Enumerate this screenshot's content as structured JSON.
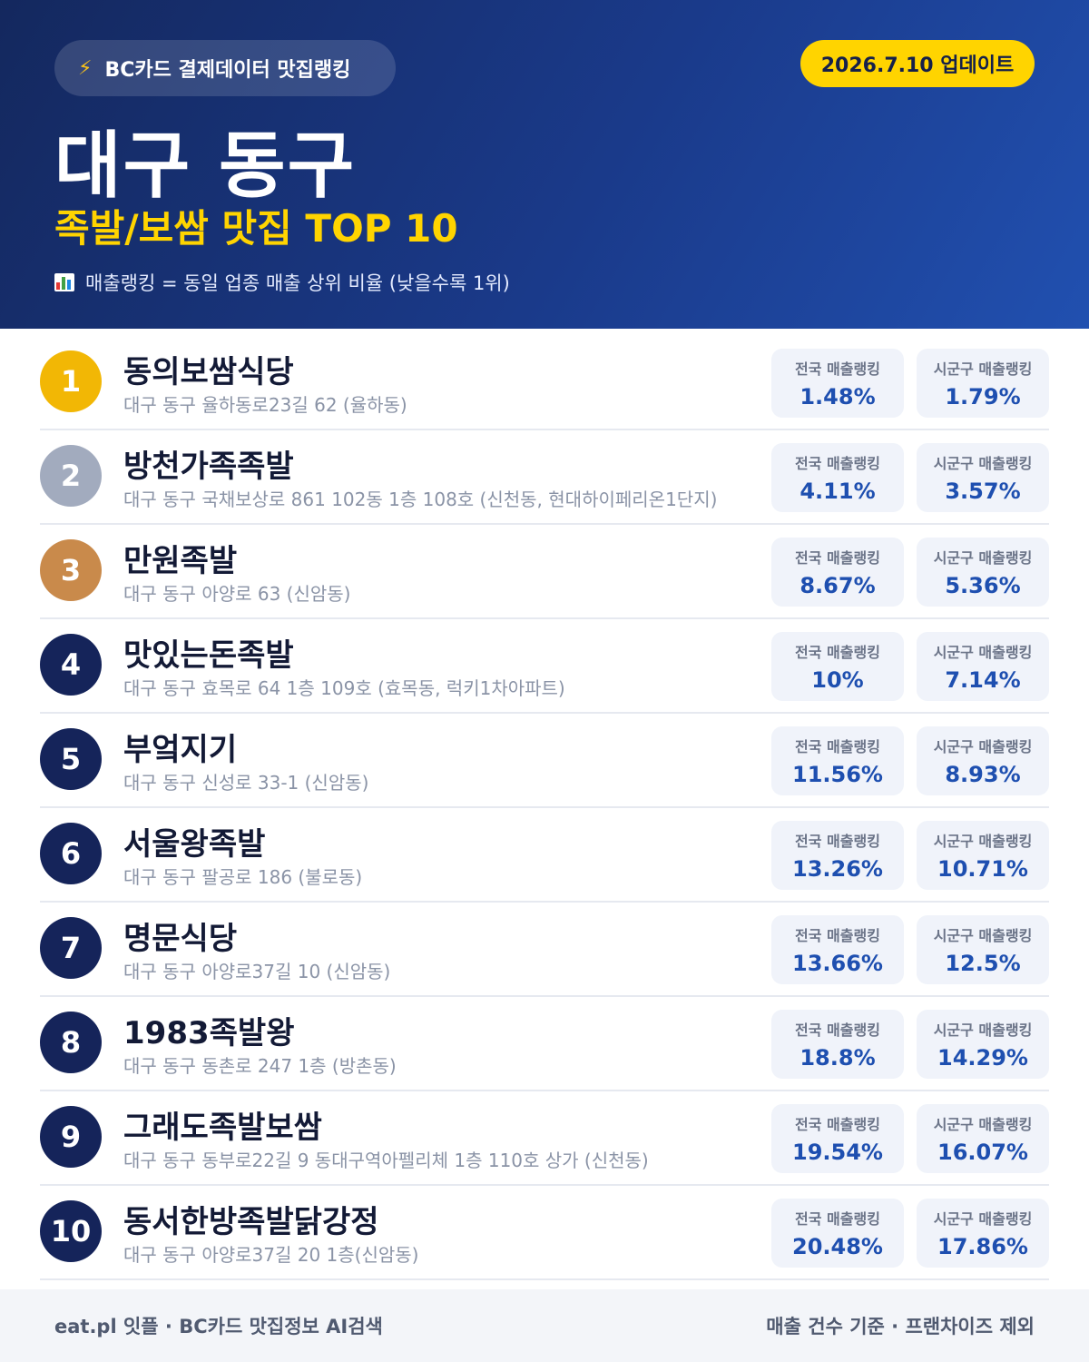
{
  "header": {
    "source": "BC카드 결제데이터 맛집랭킹",
    "update": "2026.7.10 업데이트",
    "region": "대구 동구",
    "subtitle": "족발/보쌈 맛집 TOP 10",
    "note": "매출랭킹 = 동일 업종 매출 상위 비율 (낮을수록 1위)",
    "accent": "#ffd400"
  },
  "labels": {
    "national": "전국 매출랭킹",
    "local": "시군구 매출랭킹"
  },
  "items": [
    {
      "rank": "1",
      "name": "동의보쌈식당",
      "address": "대구 동구 율하동로23길 62 (율하동)",
      "national": "1.48%",
      "local": "1.79%"
    },
    {
      "rank": "2",
      "name": "방천가족족발",
      "address": "대구 동구 국채보상로 861 102동 1층 108호 (신천동, 현대하이페리온1단지)",
      "national": "4.11%",
      "local": "3.57%"
    },
    {
      "rank": "3",
      "name": "만원족발",
      "address": "대구 동구 아양로 63 (신암동)",
      "national": "8.67%",
      "local": "5.36%"
    },
    {
      "rank": "4",
      "name": "맛있는돈족발",
      "address": "대구 동구 효목로 64 1층 109호 (효목동, 럭키1차아파트)",
      "national": "10%",
      "local": "7.14%"
    },
    {
      "rank": "5",
      "name": "부엌지기",
      "address": "대구 동구 신성로 33-1 (신암동)",
      "national": "11.56%",
      "local": "8.93%"
    },
    {
      "rank": "6",
      "name": "서울왕족발",
      "address": "대구 동구 팔공로 186 (불로동)",
      "national": "13.26%",
      "local": "10.71%"
    },
    {
      "rank": "7",
      "name": "명문식당",
      "address": "대구 동구 아양로37길 10 (신암동)",
      "national": "13.66%",
      "local": "12.5%"
    },
    {
      "rank": "8",
      "name": "1983족발왕",
      "address": "대구 동구 동촌로 247 1층 (방촌동)",
      "national": "18.8%",
      "local": "14.29%"
    },
    {
      "rank": "9",
      "name": "그래도족발보쌈",
      "address": "대구 동구 동부로22길 9 동대구역아펠리체 1층 110호 상가 (신천동)",
      "national": "19.54%",
      "local": "16.07%"
    },
    {
      "rank": "10",
      "name": "동서한방족발닭강정",
      "address": "대구 동구 아양로37길 20 1층(신암동)",
      "national": "20.48%",
      "local": "17.86%"
    }
  ],
  "footer": {
    "left": "eat.pl 잇플 · BC카드 맛집정보 AI검색",
    "right": "매출 건수 기준 · 프랜차이즈 제외"
  }
}
